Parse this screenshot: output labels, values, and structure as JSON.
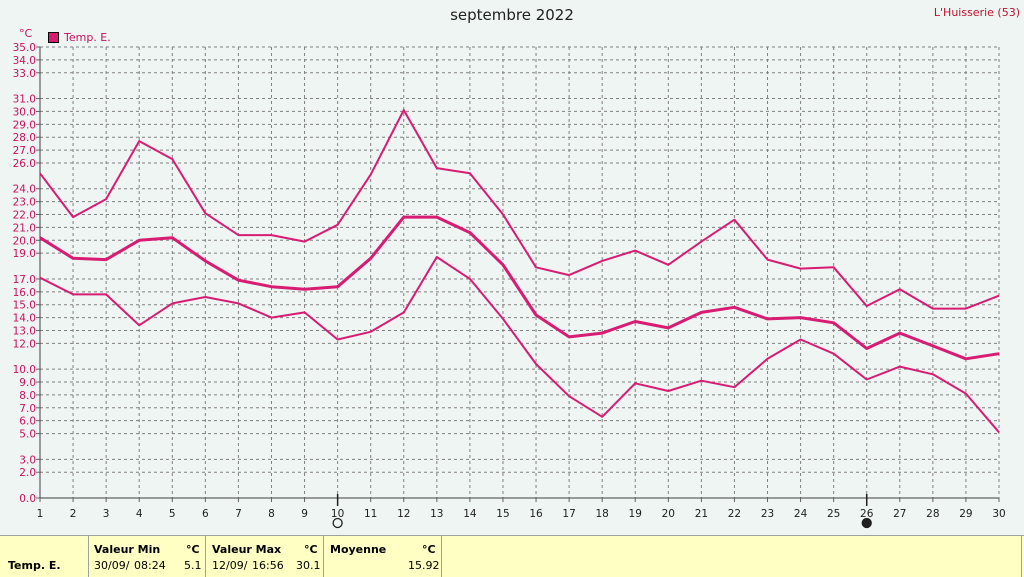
{
  "header": {
    "title": "septembre 2022",
    "location": "L'Huisserie (53)"
  },
  "legend": {
    "label": "Temp. E.",
    "color": "#d81b73"
  },
  "chart_data": {
    "type": "line",
    "title": "septembre 2022",
    "ylabel": "°C",
    "xlabel": "",
    "ylim": [
      0,
      35
    ],
    "grid": true,
    "legend": "top-left",
    "x": [
      1,
      2,
      3,
      4,
      5,
      6,
      7,
      8,
      9,
      10,
      11,
      12,
      13,
      14,
      15,
      16,
      17,
      18,
      19,
      20,
      21,
      22,
      23,
      24,
      25,
      26,
      27,
      28,
      29,
      30
    ],
    "y_ticks": [
      "0.0",
      "2.0",
      "3.0",
      "5.0",
      "6.0",
      "7.0",
      "8.0",
      "9.0",
      "10.0",
      "12.0",
      "13.0",
      "14.0",
      "15.0",
      "16.0",
      "17.0",
      "19.0",
      "20.0",
      "21.0",
      "22.0",
      "23.0",
      "24.0",
      "26.0",
      "27.0",
      "28.0",
      "29.0",
      "30.0",
      "31.0",
      "33.0",
      "34.0",
      "35.0"
    ],
    "series": [
      {
        "name": "",
        "role": "max",
        "color": "#d81b73",
        "values": [
          25.2,
          21.8,
          23.2,
          27.7,
          26.3,
          22.1,
          20.4,
          20.4,
          19.9,
          21.2,
          25.1,
          30.1,
          25.6,
          25.2,
          22.0,
          17.9,
          17.3,
          18.4,
          19.2,
          18.1,
          19.9,
          21.6,
          18.5,
          17.8,
          17.9,
          14.9,
          16.2,
          14.7,
          14.7,
          15.7
        ]
      },
      {
        "name": "",
        "role": "mean",
        "color": "#d81b73",
        "values": [
          20.2,
          18.6,
          18.5,
          20.0,
          20.2,
          18.4,
          16.9,
          16.4,
          16.2,
          16.4,
          18.6,
          21.8,
          21.8,
          20.6,
          18.1,
          14.2,
          12.5,
          12.8,
          13.7,
          13.2,
          14.4,
          14.8,
          13.9,
          14.0,
          13.6,
          11.6,
          12.8,
          11.8,
          10.8,
          11.2
        ]
      },
      {
        "name": "",
        "role": "min",
        "color": "#d81b73",
        "values": [
          17.1,
          15.8,
          15.8,
          13.4,
          15.1,
          15.6,
          15.1,
          14.0,
          14.4,
          12.3,
          12.9,
          14.4,
          18.7,
          17.0,
          13.9,
          10.4,
          7.9,
          6.3,
          8.9,
          8.3,
          9.1,
          8.6,
          10.8,
          12.3,
          11.2,
          9.2,
          10.2,
          9.6,
          8.1,
          5.1
        ]
      }
    ],
    "moon_phases": [
      {
        "day": 10,
        "phase": "full-moon"
      },
      {
        "day": 26,
        "phase": "new-moon"
      }
    ]
  },
  "stats": {
    "row_label": "Temp. E.",
    "unit": "°C",
    "min": {
      "label": "Valeur Min",
      "date": "30/09/",
      "time": "08:24",
      "value": "5.1"
    },
    "max": {
      "label": "Valeur Max",
      "date": "12/09/",
      "time": "16:56",
      "value": "30.1"
    },
    "mean": {
      "label": "Moyenne",
      "value": "15.92"
    }
  }
}
